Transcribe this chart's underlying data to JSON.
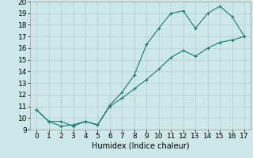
{
  "xlabel": "Humidex (Indice chaleur)",
  "background_color": "#cde8e8",
  "grid_color": "#b8d0d0",
  "line_color": "#1a7a6e",
  "xlim": [
    -0.5,
    17.5
  ],
  "ylim": [
    9,
    20
  ],
  "xticks": [
    0,
    1,
    2,
    3,
    4,
    5,
    6,
    7,
    8,
    9,
    10,
    11,
    12,
    13,
    14,
    15,
    16,
    17
  ],
  "yticks": [
    9,
    10,
    11,
    12,
    13,
    14,
    15,
    16,
    17,
    18,
    19,
    20
  ],
  "upper_x": [
    0,
    1,
    2,
    3,
    4,
    5,
    6,
    7,
    8,
    9,
    10,
    11,
    12,
    13,
    14,
    15,
    16,
    17
  ],
  "upper_y": [
    10.7,
    9.7,
    9.7,
    9.3,
    9.7,
    9.4,
    11.1,
    12.2,
    13.7,
    16.3,
    17.7,
    19.0,
    19.2,
    17.7,
    19.0,
    19.6,
    18.7,
    17.0
  ],
  "lower_x": [
    0,
    1,
    2,
    3,
    4,
    5,
    6,
    7,
    8,
    9,
    10,
    11,
    12,
    13,
    14,
    15,
    16,
    17
  ],
  "lower_y": [
    10.7,
    9.7,
    9.3,
    9.4,
    9.7,
    9.4,
    11.0,
    11.7,
    12.5,
    13.3,
    14.2,
    15.2,
    15.8,
    15.3,
    16.0,
    16.5,
    16.7,
    17.0
  ],
  "font_size_label": 7,
  "font_size_tick": 6.5,
  "marker": "+"
}
